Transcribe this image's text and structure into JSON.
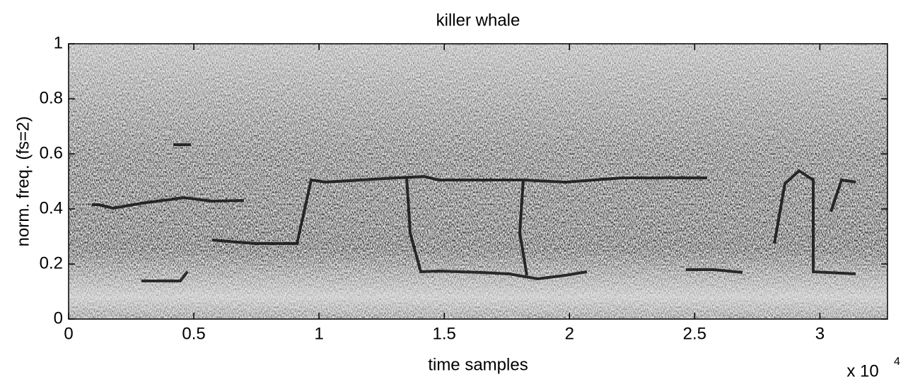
{
  "chart_data": {
    "type": "spectrogram",
    "title": "killer whale",
    "x_label": "time samples",
    "y_label": "norm. freq. (fs=2)",
    "x_multiplier": {
      "base": "x 10",
      "exponent": "4"
    },
    "xlim": [
      0,
      3.27
    ],
    "xticks": [
      0,
      0.5,
      1,
      1.5,
      2,
      2.5,
      3
    ],
    "ylim": [
      0,
      1
    ],
    "yticks": [
      0,
      0.2,
      0.4,
      0.6,
      0.8,
      1
    ]
  }
}
